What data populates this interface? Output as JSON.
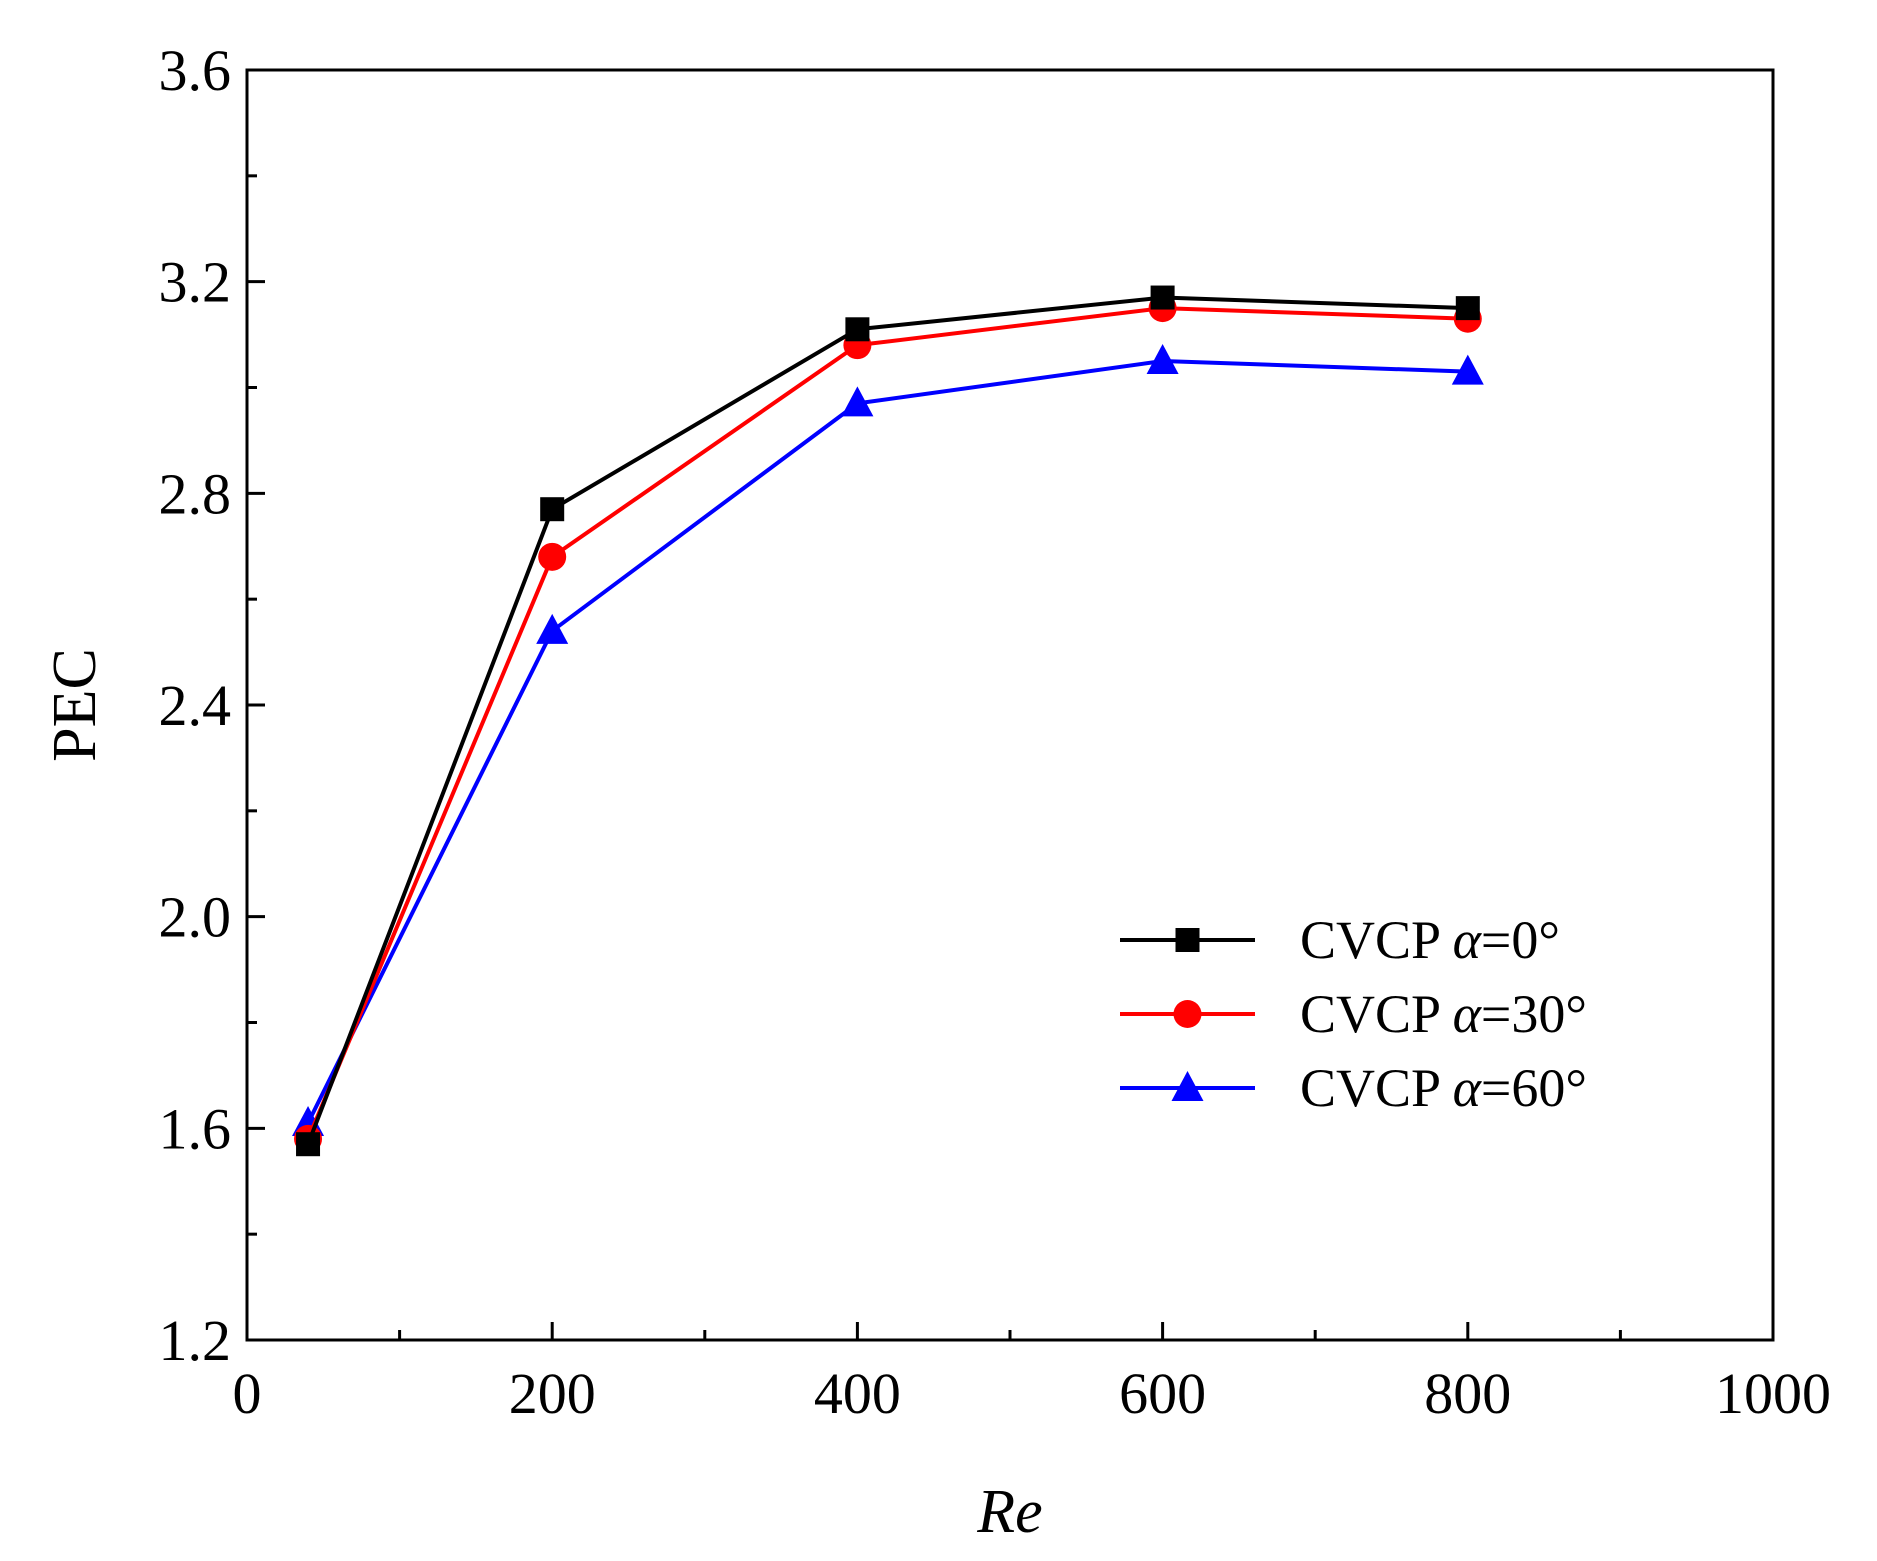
{
  "chart_data": {
    "type": "line",
    "xlabel": "Re",
    "ylabel": "PEC",
    "xlim": [
      0,
      1000
    ],
    "ylim": [
      1.2,
      3.6
    ],
    "x_major_ticks": [
      0,
      200,
      400,
      600,
      800,
      1000
    ],
    "x_minor_ticks": [
      100,
      300,
      500,
      700,
      900
    ],
    "y_major_ticks": [
      1.2,
      1.6,
      2.0,
      2.4,
      2.8,
      3.2,
      3.6
    ],
    "y_minor_ticks": [
      1.4,
      1.8,
      2.2,
      2.6,
      3.0,
      3.4
    ],
    "x_tick_labels": [
      "0",
      "200",
      "400",
      "600",
      "800",
      "1000"
    ],
    "y_tick_labels": [
      "1.2",
      "1.6",
      "2.0",
      "2.4",
      "2.8",
      "3.2",
      "3.6"
    ],
    "grid": false,
    "legend_position": "center-right",
    "series": [
      {
        "name": "CVCP α=0°",
        "label_prefix": "CVCP ",
        "label_italic": "α",
        "label_suffix": "=0°",
        "color": "#000000",
        "marker": "square",
        "x": [
          40,
          200,
          400,
          600,
          800
        ],
        "y": [
          1.57,
          2.77,
          3.11,
          3.17,
          3.15
        ]
      },
      {
        "name": "CVCP α=30°",
        "label_prefix": "CVCP ",
        "label_italic": "α",
        "label_suffix": "=30°",
        "color": "#ff0000",
        "marker": "circle",
        "x": [
          40,
          200,
          400,
          600,
          800
        ],
        "y": [
          1.58,
          2.68,
          3.08,
          3.15,
          3.13
        ]
      },
      {
        "name": "CVCP α=60°",
        "label_prefix": "CVCP ",
        "label_italic": "α",
        "label_suffix": "=60°",
        "color": "#0000ff",
        "marker": "triangle",
        "x": [
          40,
          200,
          400,
          600,
          800
        ],
        "y": [
          1.61,
          2.54,
          2.97,
          3.05,
          3.03
        ]
      }
    ]
  }
}
